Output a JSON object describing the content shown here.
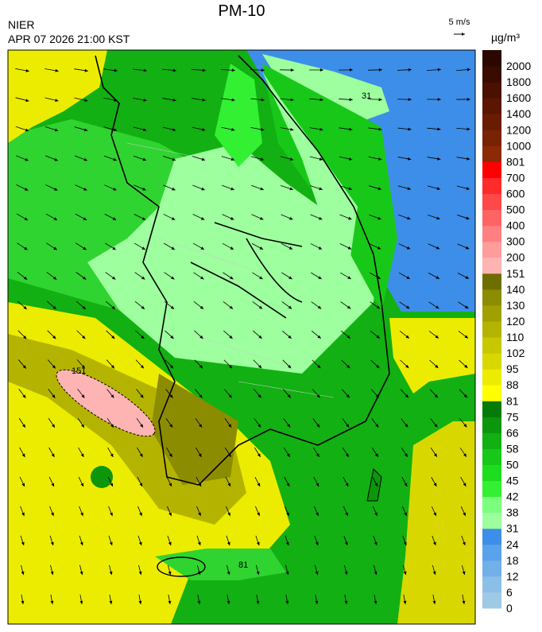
{
  "header": {
    "title": "PM-10",
    "agency": "NIER",
    "datetime": "APR 07 2026 21:00 KST",
    "wind_scale": "5 m/s",
    "unit": "µg/m³"
  },
  "legend": {
    "bins": [
      {
        "label": 0,
        "color": "#9ecae6"
      },
      {
        "label": 6,
        "color": "#8cbfe8"
      },
      {
        "label": 12,
        "color": "#72b0ea"
      },
      {
        "label": 18,
        "color": "#5aa2ec"
      },
      {
        "label": 24,
        "color": "#3d8ee8"
      },
      {
        "label": 31,
        "color": "#9eff9e"
      },
      {
        "label": 38,
        "color": "#7cff7c"
      },
      {
        "label": 42,
        "color": "#33f033"
      },
      {
        "label": 45,
        "color": "#1edc1e"
      },
      {
        "label": 50,
        "color": "#18c818"
      },
      {
        "label": 58,
        "color": "#12b012"
      },
      {
        "label": 66,
        "color": "#0c960c"
      },
      {
        "label": 75,
        "color": "#067a06"
      },
      {
        "label": 81,
        "color": "#ffff00"
      },
      {
        "label": 88,
        "color": "#ecec00"
      },
      {
        "label": 95,
        "color": "#d8d800"
      },
      {
        "label": 102,
        "color": "#c8c800"
      },
      {
        "label": 110,
        "color": "#b4b400"
      },
      {
        "label": 120,
        "color": "#a0a000"
      },
      {
        "label": 130,
        "color": "#8c8c00"
      },
      {
        "label": 140,
        "color": "#6e6e00"
      },
      {
        "label": 151,
        "color": "#ffb4b4"
      },
      {
        "label": 200,
        "color": "#ff9c9c"
      },
      {
        "label": 300,
        "color": "#ff8080"
      },
      {
        "label": 400,
        "color": "#ff6464"
      },
      {
        "label": 500,
        "color": "#ff4848"
      },
      {
        "label": 600,
        "color": "#ff2a2a"
      },
      {
        "label": 700,
        "color": "#ff0000"
      },
      {
        "label": 801,
        "color": "#8c2a06"
      },
      {
        "label": 1000,
        "color": "#7a2204"
      },
      {
        "label": 1200,
        "color": "#6a1c02"
      },
      {
        "label": 1400,
        "color": "#5a1600"
      },
      {
        "label": 1600,
        "color": "#4a1000"
      },
      {
        "label": 1800,
        "color": "#3a0c00"
      },
      {
        "label": 2000,
        "color": "#2a0800"
      }
    ]
  },
  "contour_labels": [
    "31",
    "81",
    "151"
  ]
}
